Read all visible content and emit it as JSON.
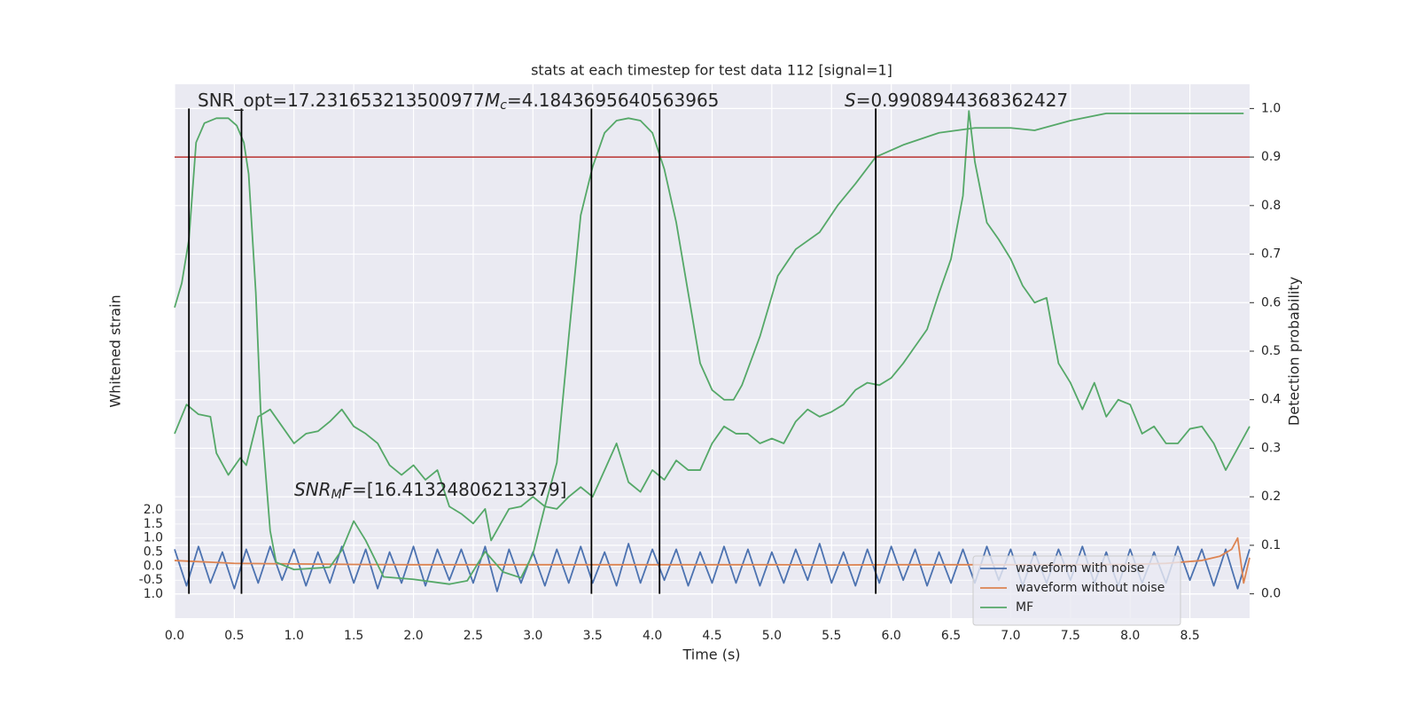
{
  "chart_data": {
    "type": "line",
    "title": "stats at each timestep for test data 112 [signal=1]",
    "x_label": "Time (s)",
    "y_label": "Whitened strain",
    "y2_label": "Detection probability",
    "xlim": [
      0,
      9
    ],
    "xticks": [
      {
        "value": 0,
        "label": "0.0"
      },
      0.5,
      {
        "value": 1,
        "label": "1.0"
      },
      1.5,
      {
        "value": 2,
        "label": "2.0"
      },
      2.5,
      {
        "value": 3,
        "label": "3.0"
      },
      3.5,
      {
        "value": 4,
        "label": "4.0"
      },
      4.5,
      {
        "value": 5,
        "label": "5.0"
      },
      5.5,
      {
        "value": 6,
        "label": "6.0"
      },
      6.5,
      {
        "value": 7,
        "label": "7.0"
      },
      7.5,
      {
        "value": 8,
        "label": "8.0"
      },
      8.5
    ],
    "ylim": [
      -1.85,
      17.15
    ],
    "yticks": [
      {
        "value": -1,
        "label": "1.0"
      },
      -0.5,
      {
        "value": 0,
        "label": "0.0"
      },
      0.5,
      {
        "value": 1,
        "label": "1.0"
      },
      1.5,
      {
        "value": 2,
        "label": "2.0"
      }
    ],
    "y2lim": [
      -0.05,
      1.05
    ],
    "y2ticks": [
      {
        "value": 0,
        "label": "0.0"
      },
      0.1,
      0.2,
      0.3,
      0.4,
      0.5,
      0.6,
      0.7,
      0.8,
      0.9,
      {
        "value": 1,
        "label": "1.0"
      }
    ],
    "grid": true,
    "legend": "lower right",
    "hline": {
      "y2": 0.9,
      "color": "#b8312f"
    },
    "vlines": {
      "x": [
        0.12,
        0.56,
        3.49,
        4.06,
        5.87
      ],
      "y2": [
        0,
        1
      ],
      "color": "#000000"
    },
    "annotations": [
      [
        {
          "text": "SNR_opt=17.231653213500977",
          "style": "normal"
        }
      ],
      [
        {
          "text": "M",
          "style": "italic"
        },
        {
          "text": "c",
          "style": "sub"
        },
        {
          "text": "=4.1843695640563965",
          "style": "normal"
        }
      ],
      [
        {
          "text": "S",
          "style": "italic"
        },
        {
          "text": "=0.9908944368362427",
          "style": "normal"
        }
      ],
      [
        {
          "text": "SNR",
          "style": "italic"
        },
        {
          "text": "M",
          "style": "sub"
        },
        {
          "text": "F",
          "style": "italic"
        },
        {
          "text": "=[16.41324806213379]",
          "style": "normal"
        }
      ]
    ],
    "series": [
      {
        "name": "waveform with noise",
        "color": "#4c72b0",
        "axis": "y",
        "x": [
          0,
          0.1,
          0.2,
          0.3,
          0.4,
          0.5,
          0.6,
          0.7,
          0.8,
          0.9,
          1,
          1.1,
          1.2,
          1.3,
          1.4,
          1.5,
          1.6,
          1.7,
          1.8,
          1.9,
          2,
          2.1,
          2.2,
          2.3,
          2.4,
          2.5,
          2.6,
          2.7,
          2.8,
          2.9,
          3,
          3.1,
          3.2,
          3.3,
          3.4,
          3.5,
          3.6,
          3.7,
          3.8,
          3.9,
          4,
          4.1,
          4.2,
          4.3,
          4.4,
          4.5,
          4.6,
          4.7,
          4.8,
          4.9,
          5,
          5.1,
          5.2,
          5.3,
          5.4,
          5.5,
          5.6,
          5.7,
          5.8,
          5.9,
          6,
          6.1,
          6.2,
          6.3,
          6.4,
          6.5,
          6.6,
          6.7,
          6.8,
          6.9,
          7,
          7.1,
          7.2,
          7.3,
          7.4,
          7.5,
          7.6,
          7.7,
          7.8,
          7.9,
          8,
          8.1,
          8.2,
          8.3,
          8.4,
          8.5,
          8.6,
          8.7,
          8.8,
          8.9,
          9
        ],
        "values": [
          0.6,
          -0.7,
          0.7,
          -0.6,
          0.5,
          -0.8,
          0.6,
          -0.6,
          0.7,
          -0.5,
          0.6,
          -0.7,
          0.5,
          -0.6,
          0.7,
          -0.6,
          0.6,
          -0.8,
          0.5,
          -0.6,
          0.7,
          -0.7,
          0.6,
          -0.5,
          0.6,
          -0.6,
          0.7,
          -0.9,
          0.6,
          -0.6,
          0.5,
          -0.7,
          0.6,
          -0.6,
          0.7,
          -0.6,
          0.5,
          -0.7,
          0.8,
          -0.6,
          0.6,
          -0.5,
          0.6,
          -0.7,
          0.5,
          -0.6,
          0.7,
          -0.6,
          0.6,
          -0.7,
          0.5,
          -0.6,
          0.6,
          -0.5,
          0.8,
          -0.6,
          0.5,
          -0.7,
          0.6,
          -0.6,
          0.7,
          -0.5,
          0.6,
          -0.7,
          0.5,
          -0.6,
          0.6,
          -0.6,
          0.7,
          -0.5,
          0.6,
          -0.7,
          0.5,
          -0.6,
          0.6,
          -0.5,
          0.7,
          -0.6,
          0.5,
          -0.7,
          0.6,
          -0.6,
          0.5,
          -0.6,
          0.7,
          -0.5,
          0.6,
          -0.7,
          0.6,
          -0.8,
          0.6
        ]
      },
      {
        "name": "waveform without noise",
        "color": "#dd8452",
        "axis": "y",
        "x": [
          0,
          0.5,
          1,
          1.5,
          2,
          2.5,
          3,
          3.5,
          4,
          4.5,
          5,
          5.5,
          6,
          6.5,
          7,
          7.5,
          8,
          8.3,
          8.6,
          8.75,
          8.85,
          8.9,
          8.95,
          9
        ],
        "values": [
          0.2,
          0.1,
          0.08,
          0.06,
          0.05,
          0.05,
          0.05,
          0.05,
          0.05,
          0.05,
          0.05,
          0.04,
          0.05,
          0.05,
          0.05,
          0.05,
          0.06,
          0.1,
          0.2,
          0.35,
          0.6,
          1.0,
          -0.6,
          0.3
        ]
      },
      {
        "name": "MF",
        "color": "#55a868",
        "axis": "y2",
        "x": [
          0,
          0.06,
          0.12,
          0.18,
          0.25,
          0.35,
          0.45,
          0.52,
          0.58,
          0.62,
          0.68,
          0.72,
          0.8,
          0.85,
          1,
          1.3,
          1.4,
          1.5,
          1.6,
          1.75,
          2,
          2.3,
          2.45,
          2.6,
          2.75,
          2.9,
          3,
          3.1,
          3.2,
          3.3,
          3.4,
          3.5,
          3.6,
          3.7,
          3.8,
          3.9,
          4,
          4.1,
          4.2,
          4.3,
          4.4,
          4.5,
          4.6,
          4.68,
          4.75,
          4.9,
          5.05,
          5.2,
          5.4,
          5.55,
          5.7,
          5.87,
          6.1,
          6.4,
          6.7,
          7,
          7.2,
          7.5,
          7.8,
          8.2,
          8.6,
          8.95
        ],
        "values": [
          0.59,
          0.64,
          0.73,
          0.93,
          0.97,
          0.98,
          0.98,
          0.965,
          0.93,
          0.865,
          0.62,
          0.38,
          0.13,
          0.065,
          0.05,
          0.055,
          0.09,
          0.15,
          0.11,
          0.035,
          0.03,
          0.02,
          0.027,
          0.087,
          0.045,
          0.033,
          0.082,
          0.18,
          0.27,
          0.53,
          0.78,
          0.88,
          0.95,
          0.975,
          0.98,
          0.975,
          0.95,
          0.875,
          0.765,
          0.62,
          0.475,
          0.42,
          0.4,
          0.4,
          0.43,
          0.53,
          0.655,
          0.71,
          0.745,
          0.8,
          0.845,
          0.9,
          0.925,
          0.95,
          0.96,
          0.96,
          0.955,
          0.975,
          0.99,
          0.99,
          0.99,
          0.99
        ]
      },
      {
        "color": "#55a868",
        "axis": "y2",
        "x": [
          0,
          0.1,
          0.2,
          0.3,
          0.35,
          0.45,
          0.55,
          0.6,
          0.7,
          0.8,
          0.9,
          1,
          1.1,
          1.2,
          1.3,
          1.4,
          1.5,
          1.6,
          1.7,
          1.8,
          1.9,
          2,
          2.1,
          2.2,
          2.3,
          2.4,
          2.5,
          2.6,
          2.65,
          2.8,
          2.9,
          3,
          3.1,
          3.2,
          3.3,
          3.4,
          3.5,
          3.6,
          3.7,
          3.8,
          3.9,
          4,
          4.1,
          4.2,
          4.3,
          4.4,
          4.5,
          4.6,
          4.7,
          4.8,
          4.9,
          5,
          5.1,
          5.2,
          5.3,
          5.4,
          5.5,
          5.6,
          5.7,
          5.8,
          5.9,
          6,
          6.1,
          6.2,
          6.3,
          6.4,
          6.5,
          6.6,
          6.65,
          6.7,
          6.8,
          6.9,
          7,
          7.1,
          7.2,
          7.3,
          7.4,
          7.5,
          7.6,
          7.7,
          7.8,
          7.9,
          8,
          8.1,
          8.2,
          8.3,
          8.4,
          8.5,
          8.6,
          8.7,
          8.8,
          8.9,
          9
        ],
        "values": [
          0.33,
          0.39,
          0.37,
          0.365,
          0.29,
          0.245,
          0.28,
          0.265,
          0.365,
          0.38,
          0.345,
          0.31,
          0.33,
          0.335,
          0.355,
          0.38,
          0.345,
          0.33,
          0.31,
          0.265,
          0.245,
          0.265,
          0.235,
          0.255,
          0.18,
          0.165,
          0.145,
          0.175,
          0.11,
          0.175,
          0.18,
          0.2,
          0.18,
          0.175,
          0.2,
          0.22,
          0.2,
          0.255,
          0.31,
          0.23,
          0.21,
          0.255,
          0.235,
          0.275,
          0.255,
          0.255,
          0.31,
          0.345,
          0.33,
          0.33,
          0.31,
          0.32,
          0.31,
          0.355,
          0.38,
          0.365,
          0.375,
          0.39,
          0.42,
          0.435,
          0.43,
          0.445,
          0.475,
          0.51,
          0.545,
          0.62,
          0.69,
          0.82,
          0.995,
          0.89,
          0.765,
          0.73,
          0.69,
          0.635,
          0.6,
          0.61,
          0.475,
          0.435,
          0.38,
          0.435,
          0.365,
          0.4,
          0.39,
          0.33,
          0.345,
          0.31,
          0.31,
          0.34,
          0.345,
          0.31,
          0.255,
          0.3,
          0.345
        ]
      }
    ]
  }
}
